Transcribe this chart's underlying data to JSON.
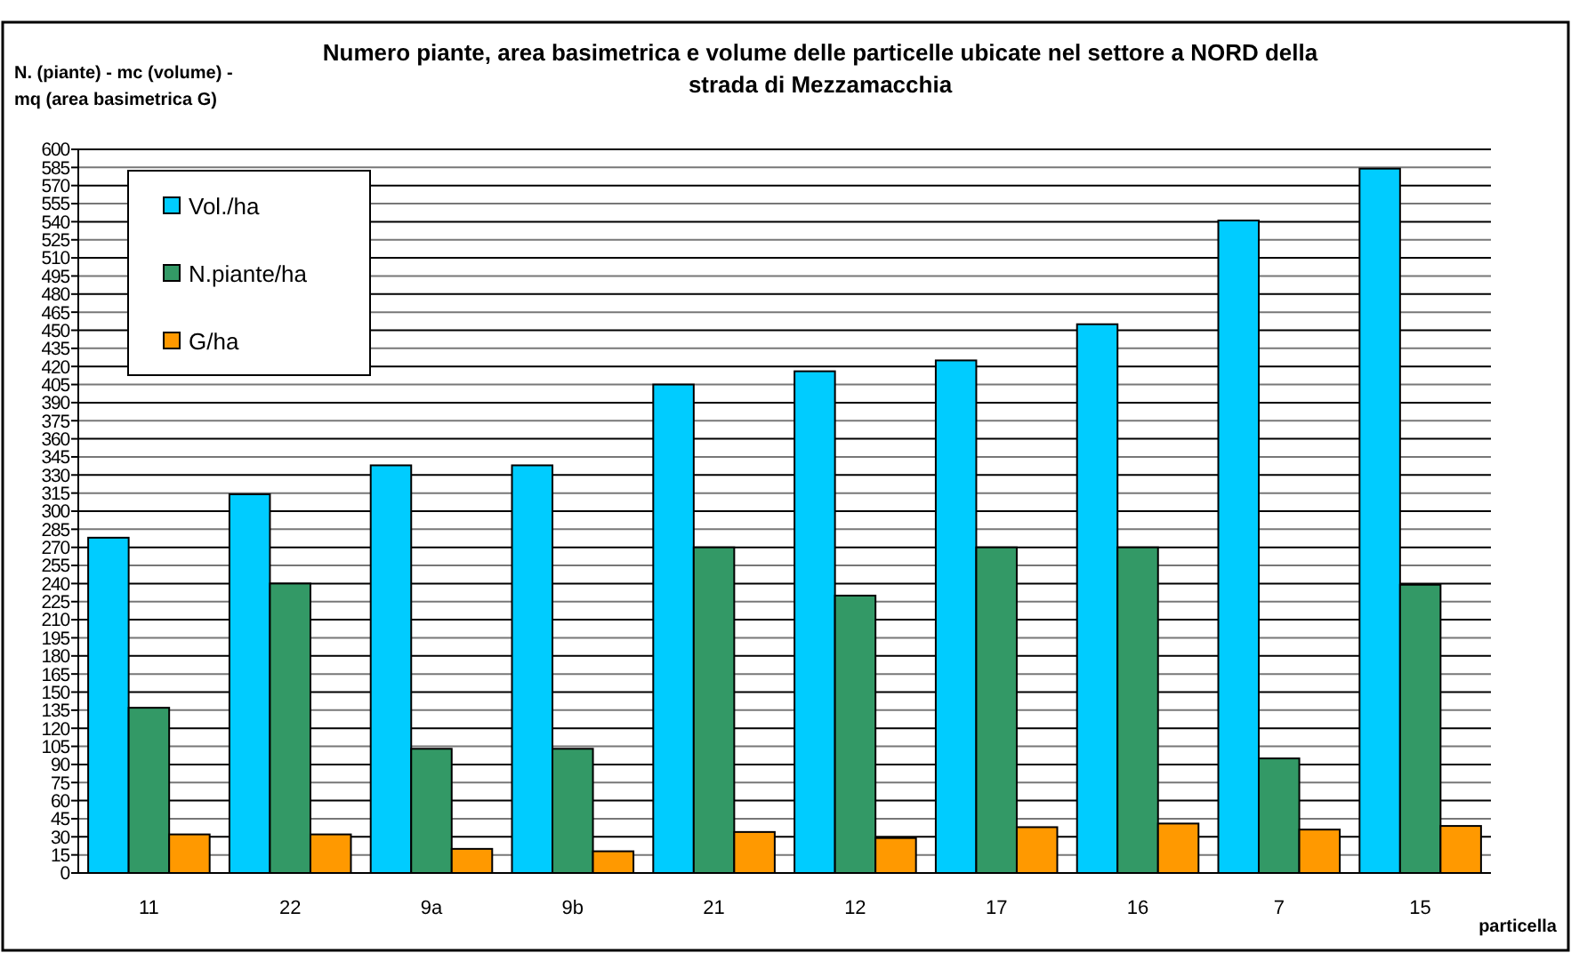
{
  "chart_data": {
    "type": "bar",
    "title": "Numero piante, area basimetrica e volume delle particelle ubicate nel settore a NORD della strada di Mezzamacchia",
    "ylabel": "N. (piante) - mc (volume) - mq (area basimetrica G)",
    "xlabel": "particella",
    "categories": [
      "11",
      "22",
      "9a",
      "9b",
      "21",
      "12",
      "17",
      "16",
      "7",
      "15"
    ],
    "series": [
      {
        "name": "Vol./ha",
        "color": "#00ccff",
        "values": [
          278,
          314,
          338,
          338,
          405,
          416,
          425,
          455,
          541,
          584
        ]
      },
      {
        "name": "N.piante/ha",
        "color": "#339966",
        "values": [
          137,
          240,
          103,
          103,
          270,
          230,
          270,
          270,
          95,
          239
        ]
      },
      {
        "name": "G/ha",
        "color": "#ff9900",
        "values": [
          32,
          32,
          20,
          18,
          34,
          29,
          38,
          41,
          36,
          39
        ]
      }
    ],
    "ylim": [
      0,
      600
    ],
    "yticks": [
      0,
      15,
      30,
      45,
      60,
      75,
      90,
      105,
      120,
      135,
      150,
      165,
      180,
      195,
      210,
      225,
      240,
      255,
      270,
      285,
      300,
      315,
      330,
      345,
      360,
      375,
      390,
      405,
      420,
      435,
      450,
      465,
      480,
      495,
      510,
      525,
      540,
      555,
      570,
      585,
      600
    ],
    "grid": "y",
    "legend": "top left"
  }
}
